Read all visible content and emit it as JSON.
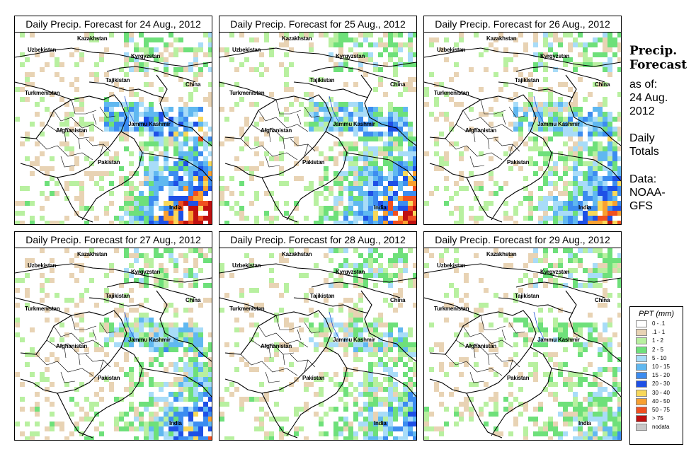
{
  "panels": [
    {
      "title": "Daily Precip. Forecast for  24 Aug., 2012",
      "intensity": 1.0
    },
    {
      "title": "Daily Precip. Forecast for  25 Aug., 2012",
      "intensity": 0.85
    },
    {
      "title": "Daily Precip. Forecast for  26 Aug., 2012",
      "intensity": 0.75
    },
    {
      "title": "Daily Precip. Forecast for  27 Aug., 2012",
      "intensity": 0.65
    },
    {
      "title": "Daily Precip. Forecast for  28 Aug., 2012",
      "intensity": 0.5
    },
    {
      "title": "Daily Precip. Forecast for  29 Aug., 2012",
      "intensity": 0.35
    }
  ],
  "country_labels": {
    "uzbekistan": "Uzbekistan",
    "kazakhstan": "Kazakhstan",
    "kyrgyzstan": "Kyrgyzstan",
    "tajikistan": "Tajikistan",
    "turkmenistan": "Turkmenistan",
    "china": "China",
    "jammu_kashmir": "Jammu Kashmir",
    "afghanistan": "Afghanistan",
    "pakistan": "Pakistan",
    "india": "India"
  },
  "side": {
    "title_line1": "Precip.",
    "title_line2": "Forecast",
    "asof_line1": "as of:",
    "asof_line2": "24 Aug.",
    "asof_line3": "2012",
    "totals_line1": "Daily",
    "totals_line2": "Totals",
    "data_line1": "Data:",
    "data_line2": "NOAA-",
    "data_line3": "GFS"
  },
  "legend": {
    "title": "PPT (mm)",
    "items": [
      {
        "label": "0 - .1",
        "color": "#ffffff"
      },
      {
        "label": ".1 - 1",
        "color": "#e8d3b4"
      },
      {
        "label": "1 - 2",
        "color": "#b8f0a0"
      },
      {
        "label": "2 - 5",
        "color": "#6ee07a"
      },
      {
        "label": "5 - 10",
        "color": "#a8dcf8"
      },
      {
        "label": "10 - 15",
        "color": "#60b8f0"
      },
      {
        "label": "15 - 20",
        "color": "#3c8cf0"
      },
      {
        "label": "20 - 30",
        "color": "#1e50e6"
      },
      {
        "label": "30 - 40",
        "color": "#f8d85a"
      },
      {
        "label": "40 - 50",
        "color": "#f8a030"
      },
      {
        "label": "50 - 75",
        "color": "#f05020"
      },
      {
        "label": "> 75",
        "color": "#c01010"
      },
      {
        "label": "nodata",
        "color": "#c8c8c8"
      }
    ]
  }
}
